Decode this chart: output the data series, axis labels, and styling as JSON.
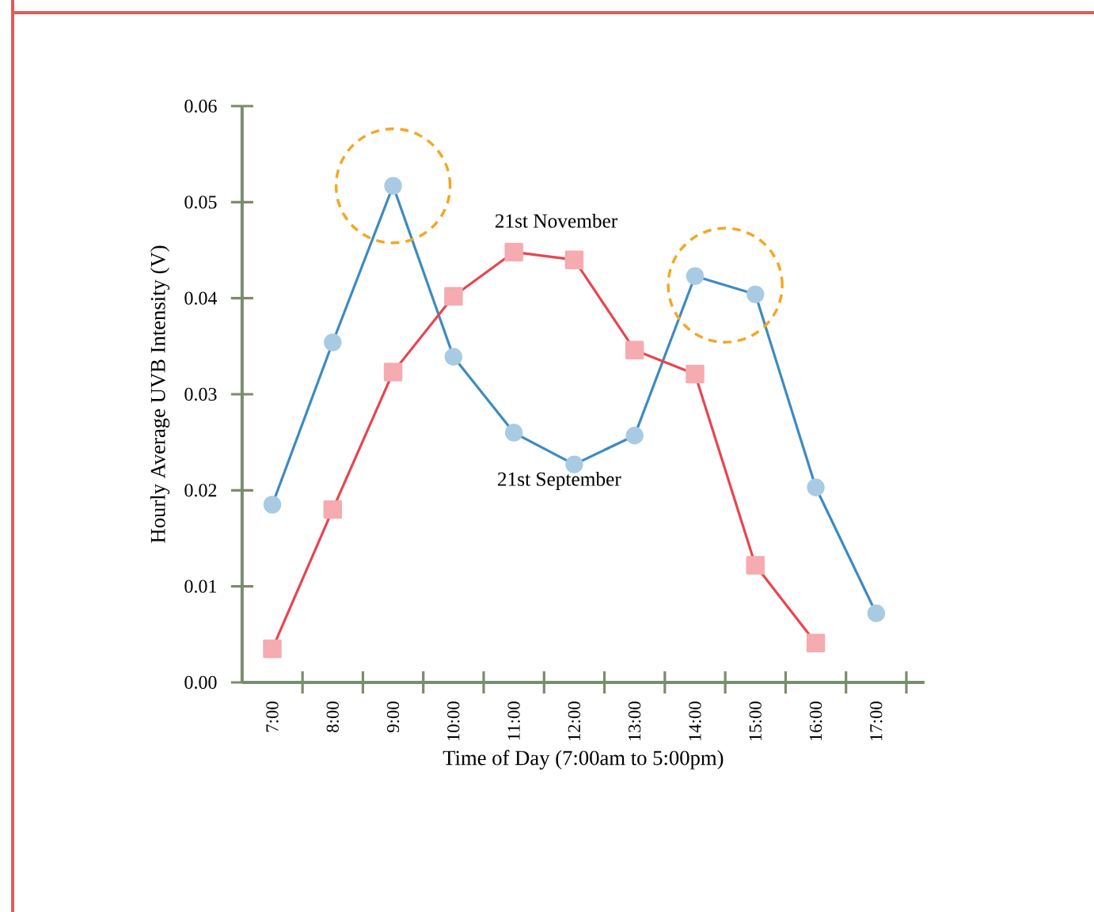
{
  "chart_data": {
    "type": "line",
    "xlabel": "Time of Day (7:00am to 5:00pm)",
    "ylabel": "Hourly Average UVB Intensity (V)",
    "categories": [
      "7:00",
      "8:00",
      "9:00",
      "10:00",
      "11:00",
      "12:00",
      "13:00",
      "14:00",
      "15:00",
      "16:00",
      "17:00"
    ],
    "ylim": [
      0,
      0.06
    ],
    "yticks": [
      {
        "value": 0,
        "label": "0.00"
      },
      {
        "value": 0.01,
        "label": "0.01"
      },
      {
        "value": 0.02,
        "label": "0.02"
      },
      {
        "value": 0.03,
        "label": "0.03"
      },
      {
        "value": 0.04,
        "label": "0.04"
      },
      {
        "value": 0.05,
        "label": "0.05"
      },
      {
        "value": 0.06,
        "label": "0.06"
      }
    ],
    "series": [
      {
        "name": "21st September",
        "color": "#3d8bc0",
        "marker": "circle",
        "values": [
          0.0185,
          0.0354,
          0.0517,
          0.0339,
          0.026,
          0.0227,
          0.0257,
          0.0423,
          0.0404,
          0.0203,
          0.0072
        ]
      },
      {
        "name": "21st November",
        "color": "#e8454f",
        "marker": "square",
        "values": [
          0.0035,
          0.018,
          0.0323,
          0.0402,
          0.0448,
          0.044,
          0.0346,
          0.0321,
          0.0122,
          0.0041,
          null
        ]
      }
    ],
    "grid": false,
    "legend": false
  }
}
